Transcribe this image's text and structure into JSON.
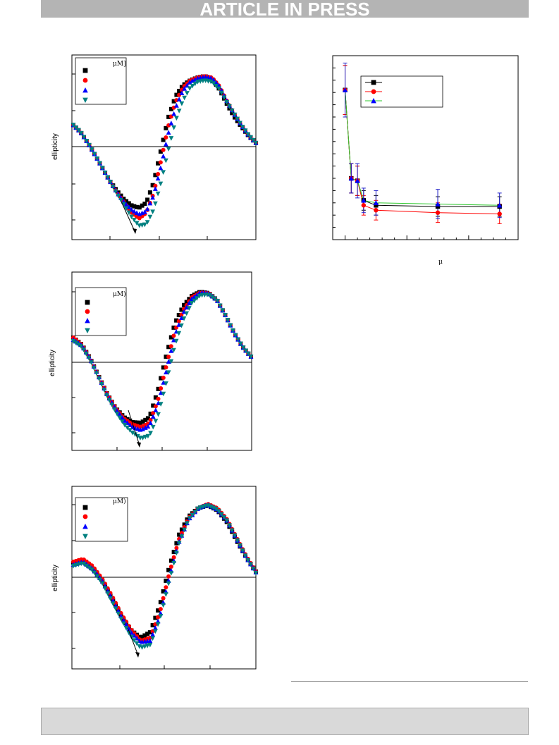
{
  "header": {
    "banner_text": "ARTICLE IN PRESS"
  },
  "panels": [
    {
      "ylabel": "ellipticity",
      "legend_title": "μM]"
    },
    {
      "ylabel": "ellipticity",
      "legend_title": "μM)"
    },
    {
      "ylabel": "ellipticity",
      "legend_title": "μM)"
    }
  ],
  "right_panel": {
    "xlabel": "μ"
  },
  "colors": {
    "black": "#000000",
    "red": "#ff0000",
    "blue": "#0000ff",
    "teal": "#008080",
    "green_line": "#2ec82e",
    "blue_error": "#2020c8",
    "banner": "#b4b4b4",
    "footer_box": "#d9d9d9"
  },
  "chart_data": [
    {
      "type": "scatter",
      "markers": [
        "square",
        "circle",
        "triangle-up",
        "triangle-down"
      ],
      "note": "CD spectra; series names not printed",
      "series": [
        {
          "values": [
            0.3,
            0.2,
            0.05,
            -0.12,
            -0.3,
            -0.48,
            -0.62,
            -0.74,
            -0.82,
            -0.85,
            -0.78,
            -0.5,
            -0.05,
            0.4,
            0.7,
            0.85,
            0.92,
            0.96,
            0.98,
            0.94,
            0.8,
            0.6,
            0.42,
            0.28,
            0.15,
            0.05
          ]
        },
        {
          "values": [
            0.3,
            0.2,
            0.05,
            -0.12,
            -0.3,
            -0.48,
            -0.64,
            -0.78,
            -0.92,
            -1.0,
            -0.92,
            -0.65,
            -0.2,
            0.28,
            0.62,
            0.82,
            0.92,
            0.96,
            0.98,
            0.96,
            0.84,
            0.64,
            0.46,
            0.3,
            0.16,
            0.05
          ]
        },
        {
          "values": [
            0.3,
            0.2,
            0.05,
            -0.12,
            -0.3,
            -0.48,
            -0.64,
            -0.78,
            -0.88,
            -0.94,
            -0.9,
            -0.68,
            -0.28,
            0.18,
            0.54,
            0.78,
            0.9,
            0.95,
            0.97,
            0.95,
            0.84,
            0.64,
            0.46,
            0.3,
            0.16,
            0.05
          ]
        },
        {
          "values": [
            0.3,
            0.2,
            0.05,
            -0.12,
            -0.3,
            -0.48,
            -0.66,
            -0.82,
            -0.98,
            -1.1,
            -1.08,
            -0.88,
            -0.5,
            -0.05,
            0.36,
            0.64,
            0.82,
            0.9,
            0.92,
            0.9,
            0.8,
            0.62,
            0.46,
            0.3,
            0.16,
            0.05
          ]
        }
      ]
    },
    {
      "type": "scatter",
      "markers": [
        "square",
        "circle",
        "triangle-up",
        "triangle-down"
      ],
      "series": [
        {
          "values": [
            0.35,
            0.25,
            0.05,
            -0.2,
            -0.45,
            -0.65,
            -0.78,
            -0.85,
            -0.86,
            -0.78,
            -0.4,
            0.1,
            0.55,
            0.8,
            0.94,
            1.0,
            0.98,
            0.88,
            0.66,
            0.42,
            0.22,
            0.08
          ]
        },
        {
          "values": [
            0.35,
            0.25,
            0.05,
            -0.2,
            -0.45,
            -0.65,
            -0.8,
            -0.88,
            -0.92,
            -0.86,
            -0.54,
            -0.05,
            0.44,
            0.74,
            0.92,
            0.99,
            0.98,
            0.88,
            0.66,
            0.42,
            0.22,
            0.08
          ]
        },
        {
          "values": [
            0.32,
            0.24,
            0.05,
            -0.2,
            -0.46,
            -0.66,
            -0.82,
            -0.92,
            -0.96,
            -0.9,
            -0.6,
            -0.12,
            0.38,
            0.7,
            0.9,
            0.99,
            0.98,
            0.88,
            0.66,
            0.42,
            0.22,
            0.08
          ]
        },
        {
          "values": [
            0.3,
            0.22,
            0.03,
            -0.22,
            -0.48,
            -0.7,
            -0.88,
            -1.0,
            -1.08,
            -1.04,
            -0.76,
            -0.28,
            0.24,
            0.6,
            0.84,
            0.95,
            0.96,
            0.88,
            0.66,
            0.42,
            0.22,
            0.08
          ]
        }
      ]
    },
    {
      "type": "scatter",
      "markers": [
        "square",
        "circle",
        "triangle-up",
        "triangle-down"
      ],
      "series": [
        {
          "values": [
            0.2,
            0.22,
            0.12,
            -0.05,
            -0.3,
            -0.55,
            -0.75,
            -0.86,
            -0.78,
            -0.4,
            0.15,
            0.6,
            0.86,
            0.98,
            1.02,
            0.95,
            0.78,
            0.52,
            0.28,
            0.08
          ]
        },
        {
          "values": [
            0.22,
            0.26,
            0.16,
            -0.02,
            -0.26,
            -0.52,
            -0.74,
            -0.9,
            -0.86,
            -0.5,
            0.06,
            0.54,
            0.84,
            0.98,
            1.04,
            0.98,
            0.82,
            0.56,
            0.3,
            0.08
          ]
        },
        {
          "values": [
            0.18,
            0.22,
            0.12,
            -0.05,
            -0.3,
            -0.56,
            -0.78,
            -0.92,
            -0.9,
            -0.56,
            0.0,
            0.5,
            0.82,
            0.98,
            1.03,
            0.96,
            0.8,
            0.54,
            0.28,
            0.07
          ]
        },
        {
          "values": [
            0.16,
            0.2,
            0.1,
            -0.08,
            -0.34,
            -0.6,
            -0.84,
            -1.0,
            -0.96,
            -0.6,
            -0.04,
            0.48,
            0.82,
            0.98,
            1.02,
            0.96,
            0.8,
            0.54,
            0.28,
            0.06
          ]
        }
      ]
    },
    {
      "type": "line",
      "x": [
        0,
        0.5,
        1,
        1.5,
        2.5,
        7.5,
        12.5
      ],
      "series": [
        {
          "color": "#000000",
          "marker": "square",
          "values": [
            6.1,
            2.5,
            2.4,
            1.6,
            1.4,
            1.35,
            1.35
          ],
          "errors": [
            1.0,
            0.6,
            0.6,
            0.4,
            0.4,
            0.4,
            0.4
          ]
        },
        {
          "color": "#ff0000",
          "marker": "circle",
          "values": [
            6.1,
            2.5,
            2.4,
            1.4,
            1.2,
            1.1,
            1.05
          ],
          "errors": [
            1.0,
            0.6,
            0.6,
            0.4,
            0.4,
            0.4,
            0.4
          ]
        },
        {
          "color": "#2ec82e",
          "marker": "triangle-up",
          "values": [
            6.1,
            2.5,
            2.4,
            1.6,
            1.5,
            1.45,
            1.4
          ],
          "errors": [
            1.1,
            0.6,
            0.7,
            0.5,
            0.5,
            0.6,
            0.5
          ]
        }
      ],
      "ylim": [
        0,
        7.5
      ],
      "xlim": [
        -1,
        14
      ]
    }
  ]
}
